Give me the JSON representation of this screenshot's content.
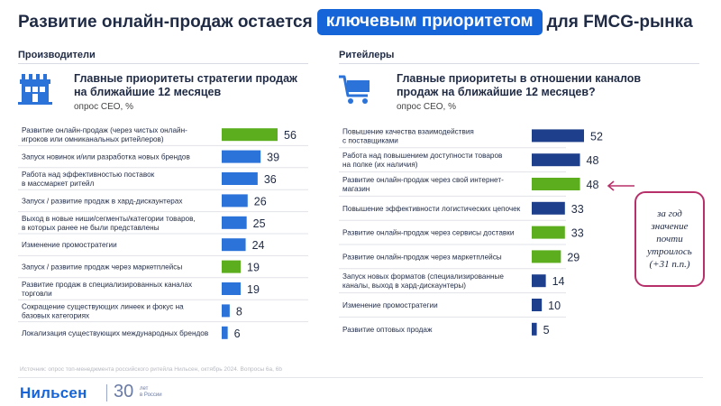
{
  "header": {
    "title_pre": "Развитие онлайн-продаж остается",
    "title_highlight": "ключевым приоритетом",
    "title_post": "для FMCG-рынка"
  },
  "colors": {
    "green": "#5cae1e",
    "blue": "#2b73d8",
    "navy": "#1e3f8c",
    "accent": "#1565d8",
    "callout_border": "#b8306a"
  },
  "left_panel": {
    "label": "Производители",
    "title_line1": "Главные приоритеты стратегии продаж",
    "title_line2": "на ближайшие 12 месяцев",
    "subtitle": "опрос CEO, %",
    "icon": "factory-icon"
  },
  "right_panel": {
    "label": "Ритейлеры",
    "title_line1": "Главные приоритеты в отношении каналов",
    "title_line2": "продаж на ближайшие 12 месяцев?",
    "subtitle": "опрос CEO, %",
    "icon": "shopping-cart-icon"
  },
  "chart_data": [
    {
      "type": "bar",
      "orientation": "horizontal",
      "categories": [
        [
          "Развитие онлайн-продаж (через чистых онлайн-",
          "игроков или омниканальных ритейлеров)"
        ],
        [
          "Запуск новинок и/или разработка новых брендов"
        ],
        [
          "Работа над эффективностью поставок",
          "в массмаркет ритейл"
        ],
        [
          "Запуск / развитие продаж в хард-дискаунтерах"
        ],
        [
          "Выход в новые ниши/сегменты/категории товаров,",
          "в которых ранее не были представлены"
        ],
        [
          "Изменение промостратегии"
        ],
        [
          "Запуск / развитие продаж через маркетплейсы"
        ],
        [
          "Развитие продаж в специализированных каналах",
          "торговли"
        ],
        [
          "Сокращение существующих линеек и фокус на",
          "базовых категориях"
        ],
        [
          "Локализация существующих международных брендов"
        ]
      ],
      "values": [
        56,
        39,
        36,
        26,
        25,
        24,
        19,
        19,
        8,
        6
      ],
      "bar_colors": [
        "green",
        "blue",
        "blue",
        "blue",
        "blue",
        "blue",
        "green",
        "blue",
        "blue",
        "blue"
      ]
    },
    {
      "type": "bar",
      "orientation": "horizontal",
      "categories": [
        [
          "Повышение качества взаимодействия",
          "с поставщиками"
        ],
        [
          "Работа над повышением доступности товаров",
          "на полке (их наличия)"
        ],
        [
          "Развитие онлайн-продаж через свой интернет-",
          "магазин"
        ],
        [
          "Повышение эффективности логистических цепочек"
        ],
        [
          "Развитие онлайн-продаж через сервисы доставки"
        ],
        [
          "Развитие онлайн-продаж через маркетплейсы"
        ],
        [
          "Запуск новых форматов (специализированные",
          "каналы, выход в хард-дискаунтеры)"
        ],
        [
          "Изменение промостратегии"
        ],
        [
          "Развитие оптовых продаж"
        ]
      ],
      "values": [
        52,
        48,
        48,
        33,
        33,
        29,
        14,
        10,
        5
      ],
      "bar_colors": [
        "navy",
        "navy",
        "green",
        "navy",
        "green",
        "green",
        "navy",
        "navy",
        "navy"
      ]
    }
  ],
  "callout": {
    "line1": "за год",
    "line2": "значение",
    "line3": "почти",
    "line4": "утроилось",
    "line5": "(+31 п.п.)"
  },
  "footer": {
    "source": "Источник: опрос топ-менеджмента российского ритейла Нильсен, октябрь 2024. Вопросы 6а, 6b",
    "logo_text": "Нильсен",
    "logo_number": "30",
    "logo_small_1": "лет",
    "logo_small_2": "в России"
  }
}
